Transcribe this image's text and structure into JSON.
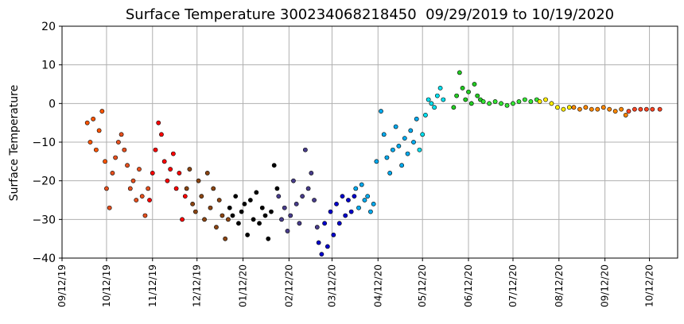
{
  "chart_data": {
    "type": "scatter",
    "title": "Surface Temperature 300234068218450  09/29/2019 to 10/19/2020",
    "xlabel": "",
    "ylabel": "Surface Temperature",
    "ylim": [
      -40,
      20
    ],
    "xlim": [
      "2019-09-12",
      "2020-10-31"
    ],
    "y_ticks": [
      20,
      10,
      0,
      -10,
      -20,
      -30,
      -40
    ],
    "x_ticks": [
      {
        "date": "2019-09-12",
        "label": "09/12/19"
      },
      {
        "date": "2019-10-12",
        "label": "10/12/19"
      },
      {
        "date": "2019-11-12",
        "label": "11/12/19"
      },
      {
        "date": "2019-12-12",
        "label": "12/12/19"
      },
      {
        "date": "2020-01-12",
        "label": "01/12/20"
      },
      {
        "date": "2020-02-12",
        "label": "02/12/20"
      },
      {
        "date": "2020-03-12",
        "label": "03/12/20"
      },
      {
        "date": "2020-04-12",
        "label": "04/12/20"
      },
      {
        "date": "2020-05-12",
        "label": "05/12/20"
      },
      {
        "date": "2020-06-12",
        "label": "06/12/20"
      },
      {
        "date": "2020-07-12",
        "label": "07/12/20"
      },
      {
        "date": "2020-08-12",
        "label": "08/12/20"
      },
      {
        "date": "2020-09-12",
        "label": "09/12/20"
      },
      {
        "date": "2020-10-12",
        "label": "10/12/20"
      }
    ],
    "grid": true,
    "legend": "none",
    "marker_edge_color": "#000000",
    "series": [
      {
        "color": "#ff5500",
        "x": [
          "2019-09-29",
          "2019-10-01",
          "2019-10-03",
          "2019-10-05",
          "2019-10-07",
          "2019-10-09",
          "2019-10-11"
        ],
        "y": [
          -5,
          -10,
          -4,
          -12,
          -7,
          -2,
          -15
        ]
      },
      {
        "color": "#e6501e",
        "x": [
          "2019-10-12",
          "2019-10-14",
          "2019-10-16",
          "2019-10-18",
          "2019-10-20",
          "2019-10-22",
          "2019-10-24",
          "2019-10-26",
          "2019-10-28",
          "2019-10-30",
          "2019-11-01",
          "2019-11-03",
          "2019-11-05",
          "2019-11-07",
          "2019-11-09"
        ],
        "y": [
          -22,
          -27,
          -18,
          -14,
          -10,
          -8,
          -12,
          -16,
          -22,
          -20,
          -25,
          -17,
          -24,
          -29,
          -22
        ]
      },
      {
        "color": "#ff0000",
        "x": [
          "2019-11-10",
          "2019-11-12",
          "2019-11-14",
          "2019-11-16",
          "2019-11-18",
          "2019-11-20",
          "2019-11-22",
          "2019-11-24",
          "2019-11-26",
          "2019-11-28",
          "2019-11-30",
          "2019-12-02",
          "2019-12-04"
        ],
        "y": [
          -25,
          -18,
          -12,
          -5,
          -8,
          -15,
          -20,
          -17,
          -13,
          -22,
          -18,
          -30,
          -24
        ]
      },
      {
        "color": "#8b4513",
        "x": [
          "2019-12-05",
          "2019-12-07",
          "2019-12-09",
          "2019-12-11",
          "2019-12-13",
          "2019-12-15",
          "2019-12-17",
          "2019-12-19",
          "2019-12-21",
          "2019-12-23",
          "2019-12-25",
          "2019-12-27",
          "2019-12-29",
          "2019-12-31",
          "2020-01-02"
        ],
        "y": [
          -22,
          -17,
          -26,
          -28,
          -20,
          -24,
          -30,
          -18,
          -27,
          -22,
          -32,
          -25,
          -29,
          -35,
          -30
        ]
      },
      {
        "color": "#000000",
        "x": [
          "2020-01-03",
          "2020-01-05",
          "2020-01-07",
          "2020-01-09",
          "2020-01-11",
          "2020-01-13",
          "2020-01-15",
          "2020-01-17",
          "2020-01-19",
          "2020-01-21",
          "2020-01-23",
          "2020-01-25",
          "2020-01-27",
          "2020-01-29",
          "2020-01-31",
          "2020-02-02",
          "2020-02-04"
        ],
        "y": [
          -27,
          -29,
          -24,
          -31,
          -28,
          -26,
          -34,
          -25,
          -30,
          -23,
          -31,
          -27,
          -29,
          -35,
          -28,
          -16,
          -22
        ]
      },
      {
        "color": "#483d8b",
        "x": [
          "2020-02-05",
          "2020-02-07",
          "2020-02-09",
          "2020-02-11",
          "2020-02-13",
          "2020-02-15",
          "2020-02-17",
          "2020-02-19",
          "2020-02-21",
          "2020-02-23",
          "2020-02-25",
          "2020-02-27",
          "2020-02-29",
          "2020-03-02"
        ],
        "y": [
          -24,
          -30,
          -27,
          -33,
          -29,
          -20,
          -26,
          -31,
          -24,
          -12,
          -22,
          -18,
          -25,
          -32
        ]
      },
      {
        "color": "#0000cd",
        "x": [
          "2020-03-03",
          "2020-03-05",
          "2020-03-07",
          "2020-03-09",
          "2020-03-11",
          "2020-03-13",
          "2020-03-15",
          "2020-03-17",
          "2020-03-19",
          "2020-03-21",
          "2020-03-23",
          "2020-03-25",
          "2020-03-27"
        ],
        "y": [
          -36,
          -39,
          -31,
          -37,
          -28,
          -34,
          -26,
          -31,
          -24,
          -29,
          -25,
          -28,
          -24
        ]
      },
      {
        "color": "#00aaee",
        "x": [
          "2020-03-28",
          "2020-03-30",
          "2020-04-01",
          "2020-04-03",
          "2020-04-05",
          "2020-04-07",
          "2020-04-09",
          "2020-04-11",
          "2020-04-14",
          "2020-04-16",
          "2020-04-18",
          "2020-04-20",
          "2020-04-22",
          "2020-04-24",
          "2020-04-26",
          "2020-04-28",
          "2020-04-30",
          "2020-05-02",
          "2020-05-04",
          "2020-05-06",
          "2020-05-08"
        ],
        "y": [
          -22,
          -27,
          -21,
          -25,
          -24,
          -28,
          -26,
          -15,
          -2,
          -8,
          -14,
          -18,
          -12,
          -6,
          -11,
          -16,
          -9,
          -13,
          -7,
          -10,
          -4
        ]
      },
      {
        "color": "#00e0ee",
        "x": [
          "2020-05-10",
          "2020-05-12",
          "2020-05-14",
          "2020-05-16",
          "2020-05-18",
          "2020-05-20",
          "2020-05-22",
          "2020-05-24",
          "2020-05-26"
        ],
        "y": [
          -12,
          -8,
          -3,
          1,
          0,
          -1,
          2,
          4,
          1
        ]
      },
      {
        "color": "#22cc22",
        "x": [
          "2020-06-02",
          "2020-06-04",
          "2020-06-06",
          "2020-06-08",
          "2020-06-10",
          "2020-06-12",
          "2020-06-14",
          "2020-06-16",
          "2020-06-18",
          "2020-06-20"
        ],
        "y": [
          -1,
          2,
          8,
          4,
          1,
          3,
          0,
          5,
          2,
          1
        ]
      },
      {
        "color": "#33e633",
        "x": [
          "2020-06-22",
          "2020-06-26",
          "2020-06-30",
          "2020-07-04",
          "2020-07-08",
          "2020-07-12",
          "2020-07-16",
          "2020-07-20",
          "2020-07-24",
          "2020-07-28"
        ],
        "y": [
          0.5,
          0,
          0.5,
          0,
          -0.5,
          0,
          0.5,
          1,
          0.5,
          1
        ]
      },
      {
        "color": "#ffee00",
        "x": [
          "2020-07-30",
          "2020-08-03",
          "2020-08-07",
          "2020-08-11",
          "2020-08-15",
          "2020-08-19"
        ],
        "y": [
          0.5,
          1,
          0,
          -1,
          -1.5,
          -1
        ]
      },
      {
        "color": "#ff8800",
        "x": [
          "2020-08-22",
          "2020-08-26",
          "2020-08-30",
          "2020-09-03",
          "2020-09-07",
          "2020-09-11",
          "2020-09-15",
          "2020-09-19",
          "2020-09-23",
          "2020-09-26"
        ],
        "y": [
          -1,
          -1.5,
          -1,
          -1.5,
          -1.5,
          -1,
          -1.5,
          -2,
          -1.5,
          -3
        ]
      },
      {
        "color": "#ff4422",
        "x": [
          "2020-09-28",
          "2020-10-02",
          "2020-10-06",
          "2020-10-10",
          "2020-10-14",
          "2020-10-19"
        ],
        "y": [
          -2,
          -1.5,
          -1.5,
          -1.5,
          -1.5,
          -1.5
        ]
      }
    ]
  }
}
